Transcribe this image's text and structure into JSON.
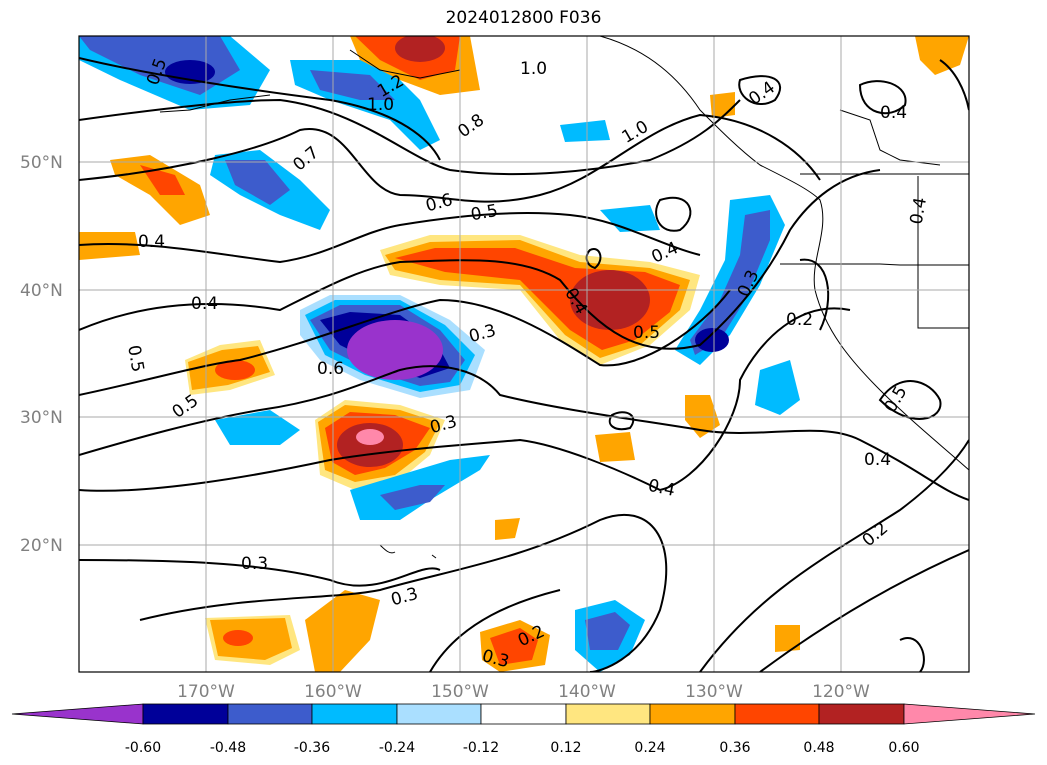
{
  "title": "2024012800 F036",
  "map": {
    "lon_labels": [
      "170°W",
      "160°W",
      "150°W",
      "140°W",
      "130°W",
      "120°W"
    ],
    "lat_labels": [
      "50°N",
      "40°N",
      "30°N",
      "20°N"
    ],
    "contour_labels": [
      {
        "text": "0.5"
      },
      {
        "text": "1.2"
      },
      {
        "text": "1.0"
      },
      {
        "text": "1.0"
      },
      {
        "text": "1.0"
      },
      {
        "text": "0.8"
      },
      {
        "text": "0.7"
      },
      {
        "text": "0.6"
      },
      {
        "text": "0.5"
      },
      {
        "text": "0.4"
      },
      {
        "text": "0.4"
      },
      {
        "text": "0.4"
      },
      {
        "text": "0.4"
      },
      {
        "text": "0.4"
      },
      {
        "text": "0.4"
      },
      {
        "text": "0.3"
      },
      {
        "text": "0.5"
      },
      {
        "text": "0.3"
      },
      {
        "text": "0.6"
      },
      {
        "text": "0.5"
      },
      {
        "text": "0.3"
      },
      {
        "text": "0.4"
      },
      {
        "text": "0.4"
      },
      {
        "text": "0.3"
      },
      {
        "text": "0.3"
      },
      {
        "text": "0.2"
      },
      {
        "text": "0.3"
      },
      {
        "text": "0.2"
      },
      {
        "text": "0.5"
      },
      {
        "text": "0.2"
      },
      {
        "text": "0.4"
      },
      {
        "text": "0.5"
      }
    ]
  },
  "colorbar": {
    "ticks": [
      "-0.60",
      "-0.48",
      "-0.36",
      "-0.24",
      "-0.12",
      "0.12",
      "0.24",
      "0.36",
      "0.48",
      "0.60"
    ],
    "colors": [
      "#9933cc",
      "#000099",
      "#3d5ccc",
      "#00bbff",
      "#aadfff",
      "#ffffff",
      "#ffe680",
      "#ffa500",
      "#ff4500",
      "#b22222",
      "#ff88aa"
    ]
  }
}
